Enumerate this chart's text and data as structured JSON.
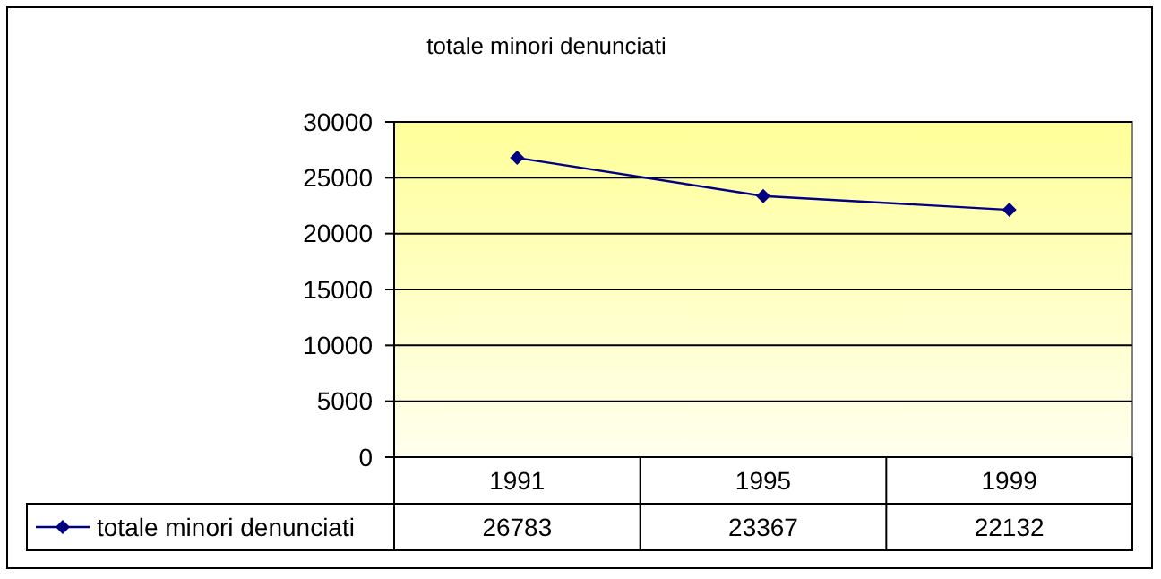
{
  "chart_data": {
    "type": "line",
    "title": "totale minori denunciati",
    "categories": [
      "1991",
      "1995",
      "1999"
    ],
    "series": [
      {
        "name": "totale minori denunciati",
        "color": "#000080",
        "values": [
          26783,
          23367,
          22132
        ]
      }
    ],
    "ylim": [
      0,
      30000
    ],
    "yticks": [
      0,
      5000,
      10000,
      15000,
      20000,
      25000,
      30000
    ],
    "grid": "y",
    "legend": "bottom left",
    "marker": "diamond",
    "line_style": "solid",
    "data_labels": true
  }
}
